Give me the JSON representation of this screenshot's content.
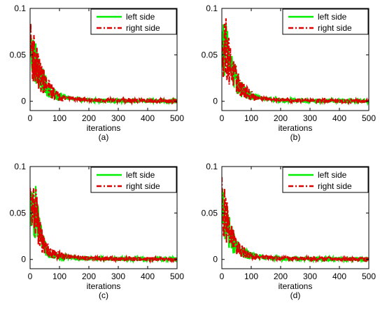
{
  "chart_data": [
    {
      "type": "line",
      "subplot_label": "(a)",
      "xlabel": "iterations",
      "ylabel": "",
      "xlim": [
        0,
        500
      ],
      "ylim": [
        -0.01,
        0.1
      ],
      "xticks": [
        "0",
        "100",
        "200",
        "300",
        "400",
        "500"
      ],
      "yticks": [
        "0",
        "0.05",
        "0.1"
      ],
      "legend": "top-right",
      "x": [
        0,
        5,
        10,
        15,
        20,
        25,
        30,
        40,
        50,
        60,
        70,
        80,
        90,
        100,
        120,
        140,
        160,
        180,
        200,
        250,
        300,
        350,
        400,
        450,
        500
      ],
      "series": [
        {
          "name": "left side",
          "color": "#00ee00",
          "style": "solid",
          "values": [
            0.06,
            0.055,
            0.05,
            0.045,
            0.04,
            0.035,
            0.03,
            0.024,
            0.018,
            0.014,
            0.011,
            0.008,
            0.006,
            0.005,
            0.004,
            0.003,
            0.002,
            0.0015,
            0.001,
            0.0008,
            0.0006,
            0.0005,
            0.0004,
            0.0003,
            0.0002
          ]
        },
        {
          "name": "right side",
          "color": "#dd0000",
          "style": "dashdot",
          "values": [
            0.07,
            0.058,
            0.05,
            0.045,
            0.04,
            0.035,
            0.03,
            0.025,
            0.019,
            0.015,
            0.012,
            0.009,
            0.007,
            0.005,
            0.004,
            0.003,
            0.0025,
            0.002,
            0.0015,
            0.001,
            0.0008,
            0.0006,
            0.0004,
            0.0003,
            0.0002
          ]
        }
      ]
    },
    {
      "type": "line",
      "subplot_label": "(b)",
      "xlabel": "iterations",
      "ylabel": "",
      "xlim": [
        0,
        500
      ],
      "ylim": [
        -0.01,
        0.1
      ],
      "xticks": [
        "0",
        "100",
        "200",
        "300",
        "400",
        "500"
      ],
      "yticks": [
        "0",
        "0.05",
        "0.1"
      ],
      "legend": "top-right",
      "x": [
        0,
        5,
        10,
        15,
        20,
        25,
        30,
        40,
        50,
        60,
        70,
        80,
        90,
        100,
        120,
        140,
        160,
        180,
        200,
        250,
        300,
        350,
        400,
        450,
        500
      ],
      "series": [
        {
          "name": "left side",
          "color": "#00ee00",
          "style": "solid",
          "values": [
            0.055,
            0.06,
            0.058,
            0.055,
            0.048,
            0.042,
            0.036,
            0.028,
            0.022,
            0.016,
            0.012,
            0.009,
            0.007,
            0.005,
            0.004,
            0.003,
            0.002,
            0.0015,
            0.001,
            0.0008,
            0.0006,
            0.0005,
            0.0004,
            0.0003,
            0.0002
          ]
        },
        {
          "name": "right side",
          "color": "#dd0000",
          "style": "dashdot",
          "values": [
            0.05,
            0.062,
            0.06,
            0.056,
            0.05,
            0.043,
            0.037,
            0.029,
            0.022,
            0.017,
            0.013,
            0.01,
            0.008,
            0.006,
            0.004,
            0.003,
            0.0025,
            0.002,
            0.0015,
            0.001,
            0.0008,
            0.0006,
            0.0004,
            0.0003,
            0.0002
          ]
        }
      ]
    },
    {
      "type": "line",
      "subplot_label": "(c)",
      "xlabel": "iterations",
      "ylabel": "",
      "xlim": [
        0,
        500
      ],
      "ylim": [
        -0.01,
        0.1
      ],
      "xticks": [
        "0",
        "100",
        "200",
        "300",
        "400",
        "500"
      ],
      "yticks": [
        "0",
        "0.05",
        "0.1"
      ],
      "legend": "top-right",
      "x": [
        0,
        5,
        10,
        15,
        20,
        25,
        30,
        40,
        50,
        60,
        70,
        80,
        90,
        100,
        120,
        140,
        160,
        180,
        200,
        250,
        300,
        350,
        400,
        450,
        500
      ],
      "series": [
        {
          "name": "left side",
          "color": "#00ee00",
          "style": "solid",
          "values": [
            0.06,
            0.05,
            0.045,
            0.055,
            0.05,
            0.04,
            0.03,
            0.02,
            0.012,
            0.009,
            0.007,
            0.005,
            0.004,
            0.003,
            0.0025,
            0.002,
            0.0015,
            0.001,
            0.001,
            0.0008,
            0.0006,
            0.0005,
            0.0004,
            0.0003,
            0.0002
          ]
        },
        {
          "name": "right side",
          "color": "#dd0000",
          "style": "dashdot",
          "values": [
            0.065,
            0.055,
            0.05,
            0.06,
            0.055,
            0.042,
            0.032,
            0.021,
            0.013,
            0.01,
            0.008,
            0.006,
            0.005,
            0.004,
            0.003,
            0.0025,
            0.002,
            0.0015,
            0.001,
            0.0008,
            0.0006,
            0.0005,
            0.0004,
            0.0003,
            0.0002
          ]
        }
      ]
    },
    {
      "type": "line",
      "subplot_label": "(d)",
      "xlabel": "iterations",
      "ylabel": "",
      "xlim": [
        0,
        500
      ],
      "ylim": [
        -0.01,
        0.1
      ],
      "xticks": [
        "0",
        "100",
        "200",
        "300",
        "400",
        "500"
      ],
      "yticks": [
        "0",
        "0.05",
        "0.1"
      ],
      "legend": "top-right",
      "x": [
        0,
        5,
        10,
        15,
        20,
        25,
        30,
        40,
        50,
        60,
        70,
        80,
        90,
        100,
        120,
        140,
        160,
        180,
        200,
        250,
        300,
        350,
        400,
        450,
        500
      ],
      "series": [
        {
          "name": "left side",
          "color": "#00ee00",
          "style": "solid",
          "values": [
            0.06,
            0.05,
            0.045,
            0.04,
            0.035,
            0.03,
            0.025,
            0.018,
            0.013,
            0.01,
            0.008,
            0.006,
            0.005,
            0.004,
            0.003,
            0.0025,
            0.002,
            0.0015,
            0.001,
            0.0008,
            0.0006,
            0.0005,
            0.0004,
            0.0003,
            0.0002
          ]
        },
        {
          "name": "right side",
          "color": "#dd0000",
          "style": "dashdot",
          "values": [
            0.075,
            0.055,
            0.048,
            0.042,
            0.037,
            0.031,
            0.026,
            0.019,
            0.014,
            0.011,
            0.009,
            0.007,
            0.005,
            0.004,
            0.003,
            0.0025,
            0.002,
            0.0015,
            0.001,
            0.0008,
            0.0006,
            0.0005,
            0.0004,
            0.0003,
            0.0002
          ]
        }
      ]
    }
  ]
}
